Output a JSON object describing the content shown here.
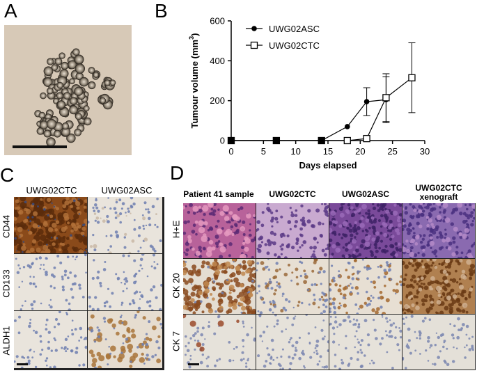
{
  "panels": {
    "a": "A",
    "b": "B",
    "c": "C",
    "d": "D"
  },
  "chart_data": {
    "type": "line",
    "xlabel": "Days elapsed",
    "ylabel": "Tumour volume (mm",
    "ylabel_sup": "3",
    "ylabel_close": ")",
    "xlim": [
      0,
      30
    ],
    "ylim": [
      0,
      600
    ],
    "xticks": [
      0,
      5,
      10,
      15,
      20,
      25,
      30
    ],
    "yticks": [
      0,
      200,
      400,
      600
    ],
    "legend_placement": "top-left",
    "series": [
      {
        "name": "UWG02ASC",
        "marker": "filled-circle",
        "x": [
          0,
          7,
          14,
          18,
          21,
          24
        ],
        "y": [
          0,
          0,
          0,
          70,
          195,
          205
        ],
        "err": [
          0,
          0,
          0,
          0,
          70,
          115
        ]
      },
      {
        "name": "UWG02CTC",
        "marker": "open-square",
        "x": [
          0,
          7,
          14,
          18,
          21,
          24,
          28
        ],
        "y": [
          0,
          0,
          0,
          0,
          10,
          215,
          315
        ],
        "err": [
          0,
          0,
          0,
          0,
          0,
          120,
          175
        ]
      }
    ]
  },
  "panel_c": {
    "columns": [
      "UWG02CTC",
      "UWG02ASC"
    ],
    "rows": [
      "CD44",
      "CD133",
      "ALDH1"
    ]
  },
  "panel_d": {
    "columns": [
      "Patient 41 sample",
      "UWG02CTC",
      "UWG02ASC",
      "UWG02CTC",
      "xenograft"
    ],
    "rows": [
      "H+E",
      "CK 20",
      "CK 7"
    ]
  }
}
